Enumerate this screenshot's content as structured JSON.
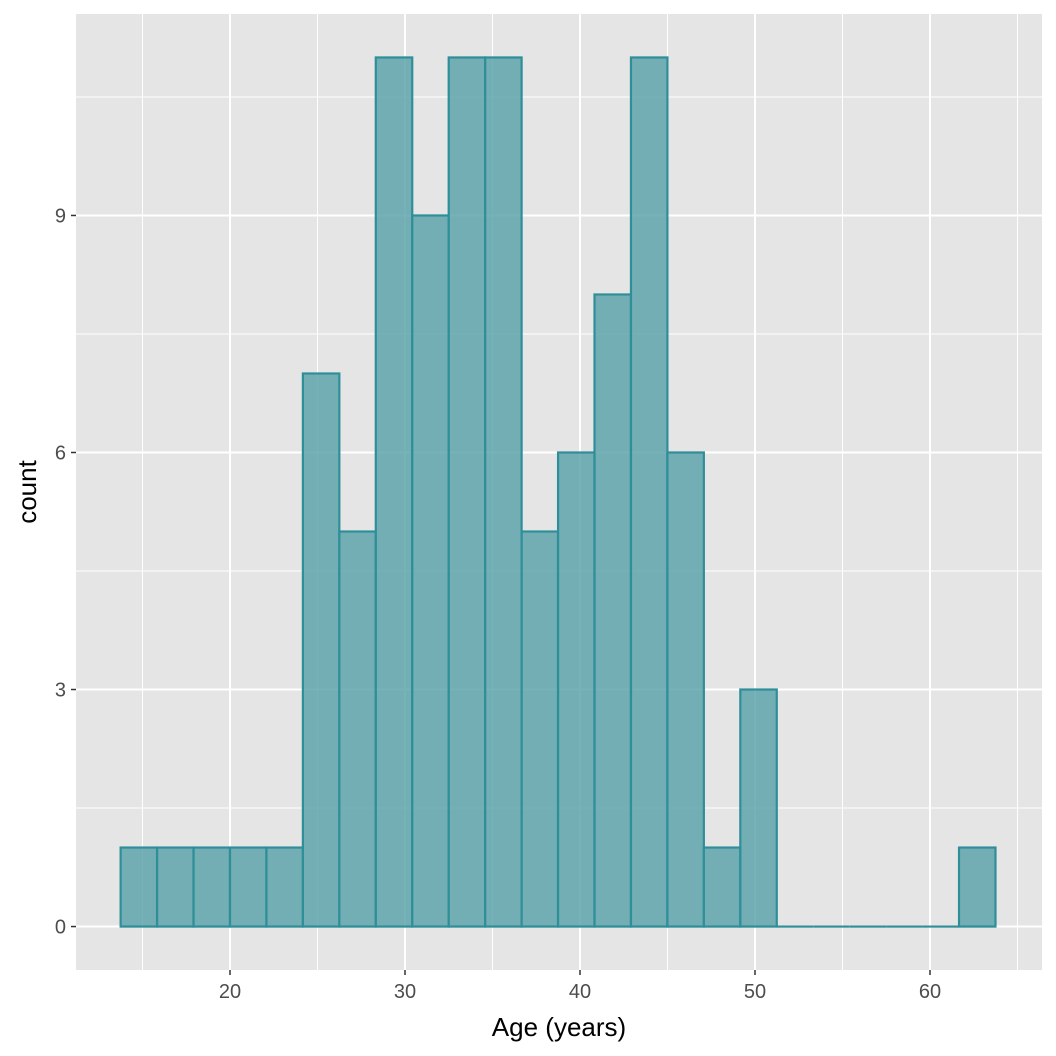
{
  "chart_data": {
    "type": "histogram",
    "title": "",
    "xlabel": "Age (years)",
    "ylabel": "count",
    "xlim": [
      11.2,
      66.4
    ],
    "ylim": [
      -0.55,
      11.55
    ],
    "x_ticks": [
      20,
      30,
      40,
      50,
      60
    ],
    "y_ticks": [
      0,
      3,
      6,
      9
    ],
    "bin_width": 2.083,
    "first_bin_start": 13.75,
    "counts": [
      1,
      1,
      1,
      1,
      1,
      7,
      5,
      11,
      9,
      11,
      11,
      5,
      6,
      8,
      11,
      6,
      1,
      3,
      0,
      0,
      0,
      0,
      0,
      1
    ],
    "grid": true,
    "fill_color": "#5fa4ab",
    "edge_color": "#2f8f99",
    "panel_background": "#e5e5e5"
  }
}
